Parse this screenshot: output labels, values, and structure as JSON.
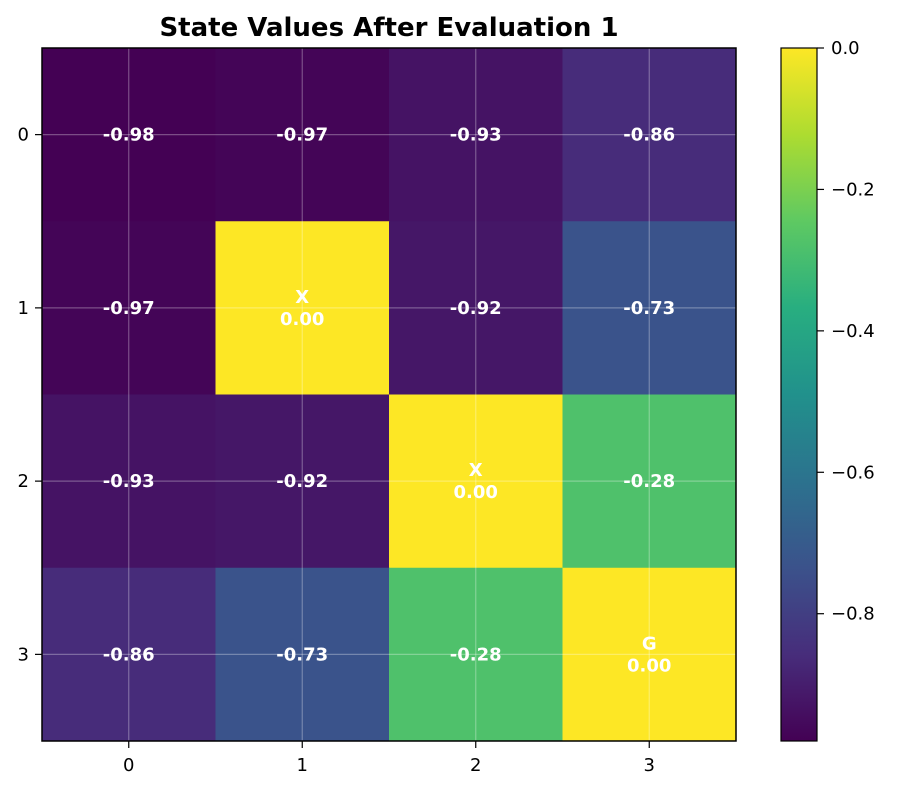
{
  "chart_data": {
    "type": "heatmap",
    "title": "State Values After Evaluation 1",
    "xlabel": "",
    "ylabel": "",
    "x_ticks": [
      "0",
      "1",
      "2",
      "3"
    ],
    "y_ticks": [
      "0",
      "1",
      "2",
      "3"
    ],
    "values": [
      [
        -0.98,
        -0.97,
        -0.93,
        -0.86
      ],
      [
        -0.97,
        0.0,
        -0.92,
        -0.73
      ],
      [
        -0.93,
        -0.92,
        0.0,
        -0.28
      ],
      [
        -0.86,
        -0.73,
        -0.28,
        0.0
      ]
    ],
    "cell_labels": [
      [
        "-0.98",
        "-0.97",
        "-0.93",
        "-0.86"
      ],
      [
        "-0.97",
        "X\n0.00",
        "-0.92",
        "-0.73"
      ],
      [
        "-0.93",
        "-0.92",
        "X\n0.00",
        "-0.28"
      ],
      [
        "-0.86",
        "-0.73",
        "-0.28",
        "G\n0.00"
      ]
    ],
    "colormap": "viridis",
    "color_range": [
      -0.98,
      0.0
    ],
    "colorbar_ticks": [
      "0.0",
      "−0.2",
      "−0.4",
      "−0.6",
      "−0.8"
    ],
    "colorbar_tick_values": [
      0.0,
      -0.2,
      -0.4,
      -0.6,
      -0.8
    ],
    "grid": true
  }
}
